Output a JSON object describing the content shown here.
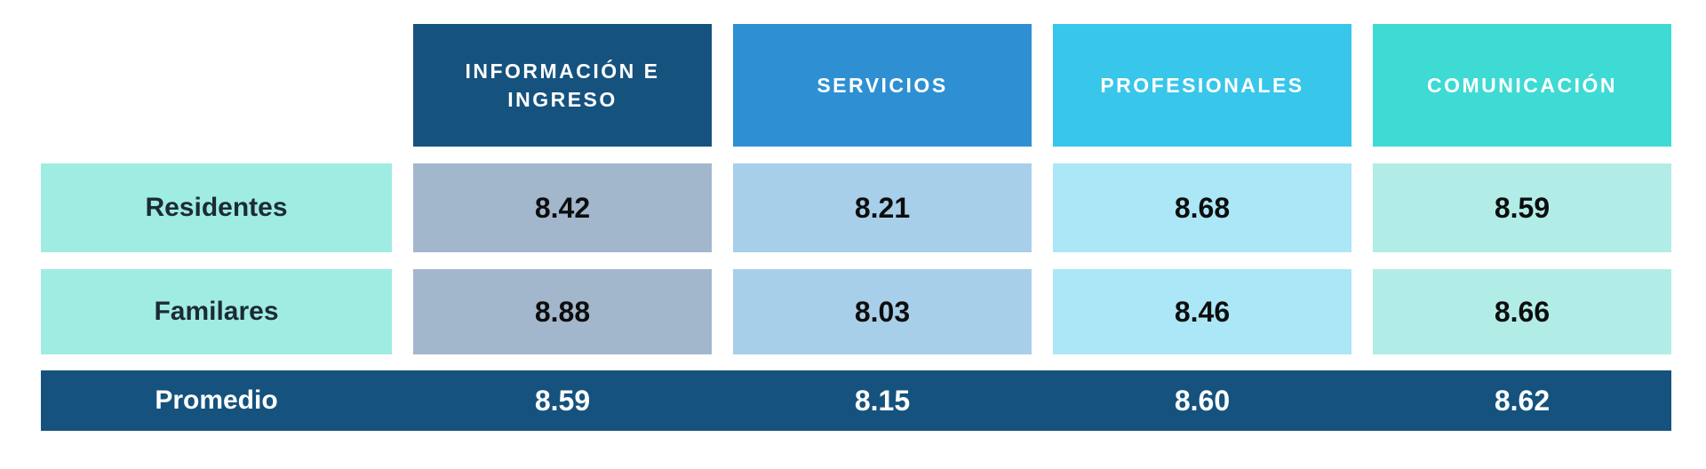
{
  "table": {
    "columns": [
      {
        "label": "INFORMACIÓN E INGRESO"
      },
      {
        "label": "SERVICIOS"
      },
      {
        "label": "PROFESIONALES"
      },
      {
        "label": "COMUNICACIÓN"
      }
    ],
    "rows": [
      {
        "label": "Residentes",
        "values": [
          "8.42",
          "8.21",
          "8.68",
          "8.59"
        ]
      },
      {
        "label": "Familares",
        "values": [
          "8.88",
          "8.03",
          "8.46",
          "8.66"
        ]
      }
    ],
    "footer": {
      "label": "Promedio",
      "values": [
        "8.59",
        "8.15",
        "8.60",
        "8.62"
      ]
    }
  },
  "colors": {
    "header_informacion_bg": "#15527e",
    "header_servicios_bg": "#2e90d3",
    "header_profesionales_bg": "#38c6ea",
    "header_comunicacion_bg": "#3edad4",
    "row_label_bg": "#9fece3",
    "cell_informacion_bg": "#a3b7cc",
    "cell_servicios_bg": "#a8cfea",
    "cell_profesionales_bg": "#abe7f6",
    "cell_comunicacion_bg": "#b2ece6",
    "footer_bg": "#15527e",
    "header_text": "#ffffff",
    "row_label_text": "#1c2b33",
    "value_text": "#0d0d0d",
    "footer_text": "#ffffff"
  },
  "chart_data": {
    "type": "table",
    "categories": [
      "INFORMACIÓN E INGRESO",
      "SERVICIOS",
      "PROFESIONALES",
      "COMUNICACIÓN"
    ],
    "series": [
      {
        "name": "Residentes",
        "values": [
          8.42,
          8.21,
          8.68,
          8.59
        ]
      },
      {
        "name": "Familares",
        "values": [
          8.88,
          8.03,
          8.46,
          8.66
        ]
      },
      {
        "name": "Promedio",
        "values": [
          8.59,
          8.15,
          8.6,
          8.62
        ]
      }
    ],
    "title": "",
    "xlabel": "",
    "ylabel": "",
    "legend_position": "none",
    "grid": false
  }
}
